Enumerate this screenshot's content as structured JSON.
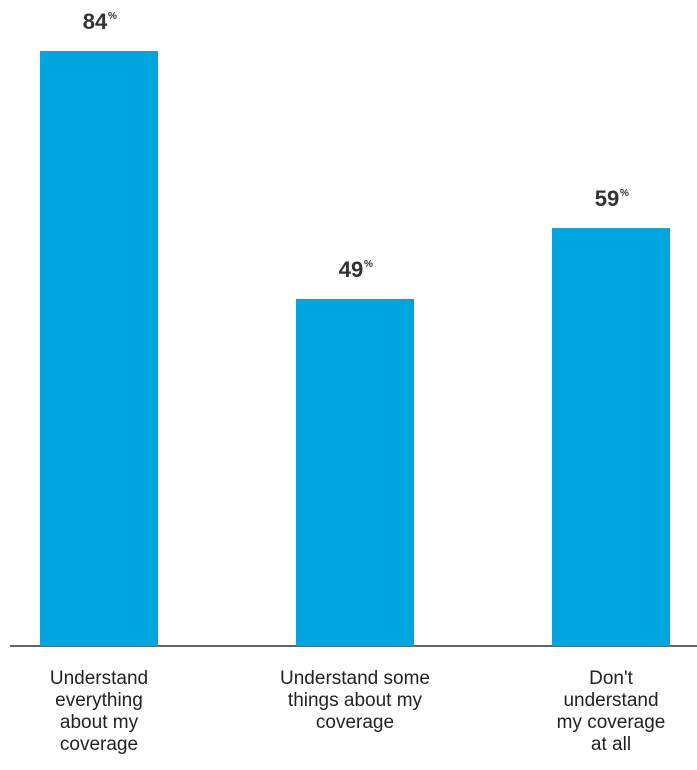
{
  "chart_data": {
    "type": "bar",
    "categories": [
      [
        "Understand",
        "everything",
        "about my",
        "coverage"
      ],
      [
        "Understand some",
        "things about my",
        "coverage"
      ],
      [
        "Don't",
        "understand",
        "my coverage",
        "at all"
      ]
    ],
    "values": [
      84,
      49,
      59
    ],
    "value_suffix": "%",
    "ylim": [
      0,
      100
    ],
    "grid": false,
    "legend": "none",
    "bar_color": "#00a5e0",
    "baseline_color": "#333333"
  }
}
